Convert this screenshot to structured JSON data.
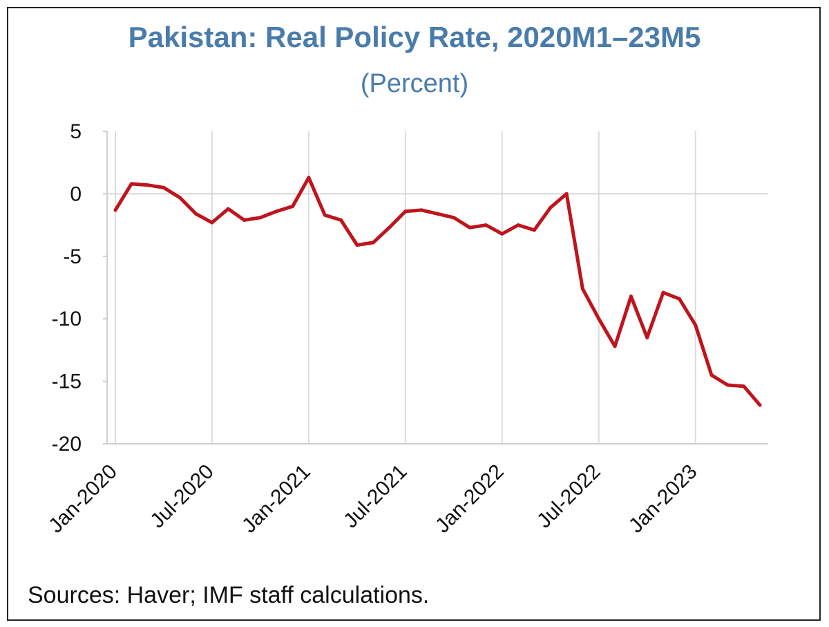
{
  "chart_data": {
    "type": "line",
    "title": "Pakistan: Real Policy Rate, 2020M1–23M5",
    "subtitle": "(Percent)",
    "xlabel": "",
    "ylabel": "",
    "ylim": [
      -20,
      5
    ],
    "yticks": [
      "5",
      "0",
      "-5",
      "-10",
      "-15",
      "-20"
    ],
    "xticks": [
      "Jan-2020",
      "Jul-2020",
      "Jan-2021",
      "Jul-2021",
      "Jan-2022",
      "Jul-2022",
      "Jan-2023"
    ],
    "grid": "vertical",
    "line_color": "#c0141c",
    "series": [
      {
        "x": [
          "2020-01",
          "2020-02",
          "2020-03",
          "2020-04",
          "2020-05",
          "2020-06",
          "2020-07",
          "2020-08",
          "2020-09",
          "2020-10",
          "2020-11",
          "2020-12",
          "2021-01",
          "2021-02",
          "2021-03",
          "2021-04",
          "2021-05",
          "2021-06",
          "2021-07",
          "2021-08",
          "2021-09",
          "2021-10",
          "2021-11",
          "2021-12",
          "2022-01",
          "2022-02",
          "2022-03",
          "2022-04",
          "2022-05",
          "2022-06",
          "2022-07",
          "2022-08",
          "2022-09",
          "2022-10",
          "2022-11",
          "2022-12",
          "2023-01",
          "2023-02",
          "2023-03",
          "2023-04",
          "2023-05"
        ],
        "values": [
          -1.3,
          0.8,
          0.7,
          0.5,
          -0.3,
          -1.6,
          -2.3,
          -1.2,
          -2.1,
          -1.9,
          -1.4,
          -1.0,
          1.3,
          -1.7,
          -2.1,
          -4.1,
          -3.9,
          -2.7,
          -1.4,
          -1.3,
          -1.6,
          -1.9,
          -2.7,
          -2.5,
          -3.2,
          -2.5,
          -2.9,
          -1.1,
          0.0,
          -7.6,
          -10.0,
          -12.2,
          -8.2,
          -11.5,
          -7.9,
          -8.4,
          -10.5,
          -14.5,
          -15.3,
          -15.4,
          -16.9
        ]
      }
    ]
  },
  "footer": {
    "source": "Sources: Haver; IMF staff calculations."
  }
}
